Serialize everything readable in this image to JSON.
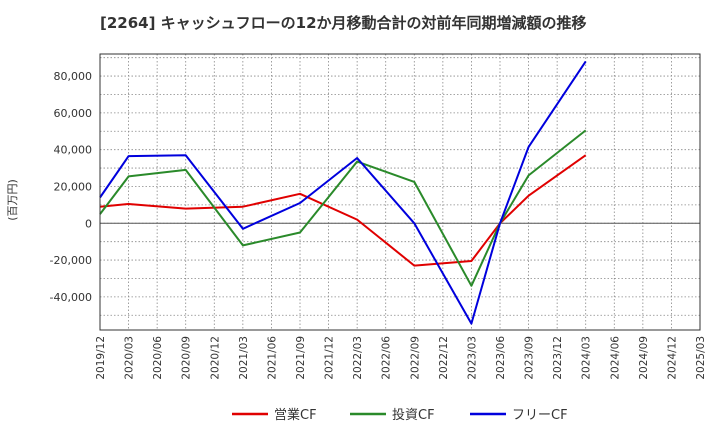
{
  "chart_data": {
    "type": "line",
    "title": "[2264]  キャッシュフローの12か月移動合計の対前年同期増減額の推移",
    "ylabel": "(百万円)",
    "xlabel": "",
    "ylim": [
      -58000,
      92000
    ],
    "yticks": [
      -40000,
      -20000,
      0,
      20000,
      40000,
      60000,
      80000
    ],
    "ytick_labels": [
      "-40,000",
      "-20,000",
      "0",
      "20,000",
      "40,000",
      "60,000",
      "80,000"
    ],
    "categories": [
      "2019/12",
      "2020/03",
      "2020/06",
      "2020/09",
      "2020/12",
      "2021/03",
      "2021/06",
      "2021/09",
      "2021/12",
      "2022/03",
      "2022/06",
      "2022/09",
      "2022/12",
      "2023/03",
      "2023/06",
      "2023/09",
      "2023/12",
      "2024/03",
      "2024/06",
      "2024/09",
      "2024/12",
      "2025/03"
    ],
    "grid": true,
    "legend_position": "bottom",
    "series": [
      {
        "name": "営業CF",
        "color": "#e00000",
        "values": [
          9000,
          10500,
          null,
          8000,
          null,
          9000,
          null,
          16000,
          null,
          2000,
          null,
          -23000,
          null,
          -20500,
          0,
          15000,
          null,
          37000,
          null,
          null,
          null,
          null
        ]
      },
      {
        "name": "投資CF",
        "color": "#2a8a2a",
        "values": [
          5000,
          25500,
          null,
          29000,
          null,
          -12000,
          null,
          -5000,
          null,
          33500,
          null,
          22500,
          null,
          -34000,
          0,
          26000,
          null,
          50500,
          null,
          null,
          null,
          null
        ]
      },
      {
        "name": "フリーCF",
        "color": "#0000dd",
        "values": [
          14000,
          36500,
          null,
          37000,
          null,
          -3000,
          null,
          11000,
          null,
          35500,
          null,
          0,
          null,
          -54500,
          0,
          41500,
          null,
          88000,
          null,
          null,
          null,
          null
        ]
      }
    ]
  }
}
